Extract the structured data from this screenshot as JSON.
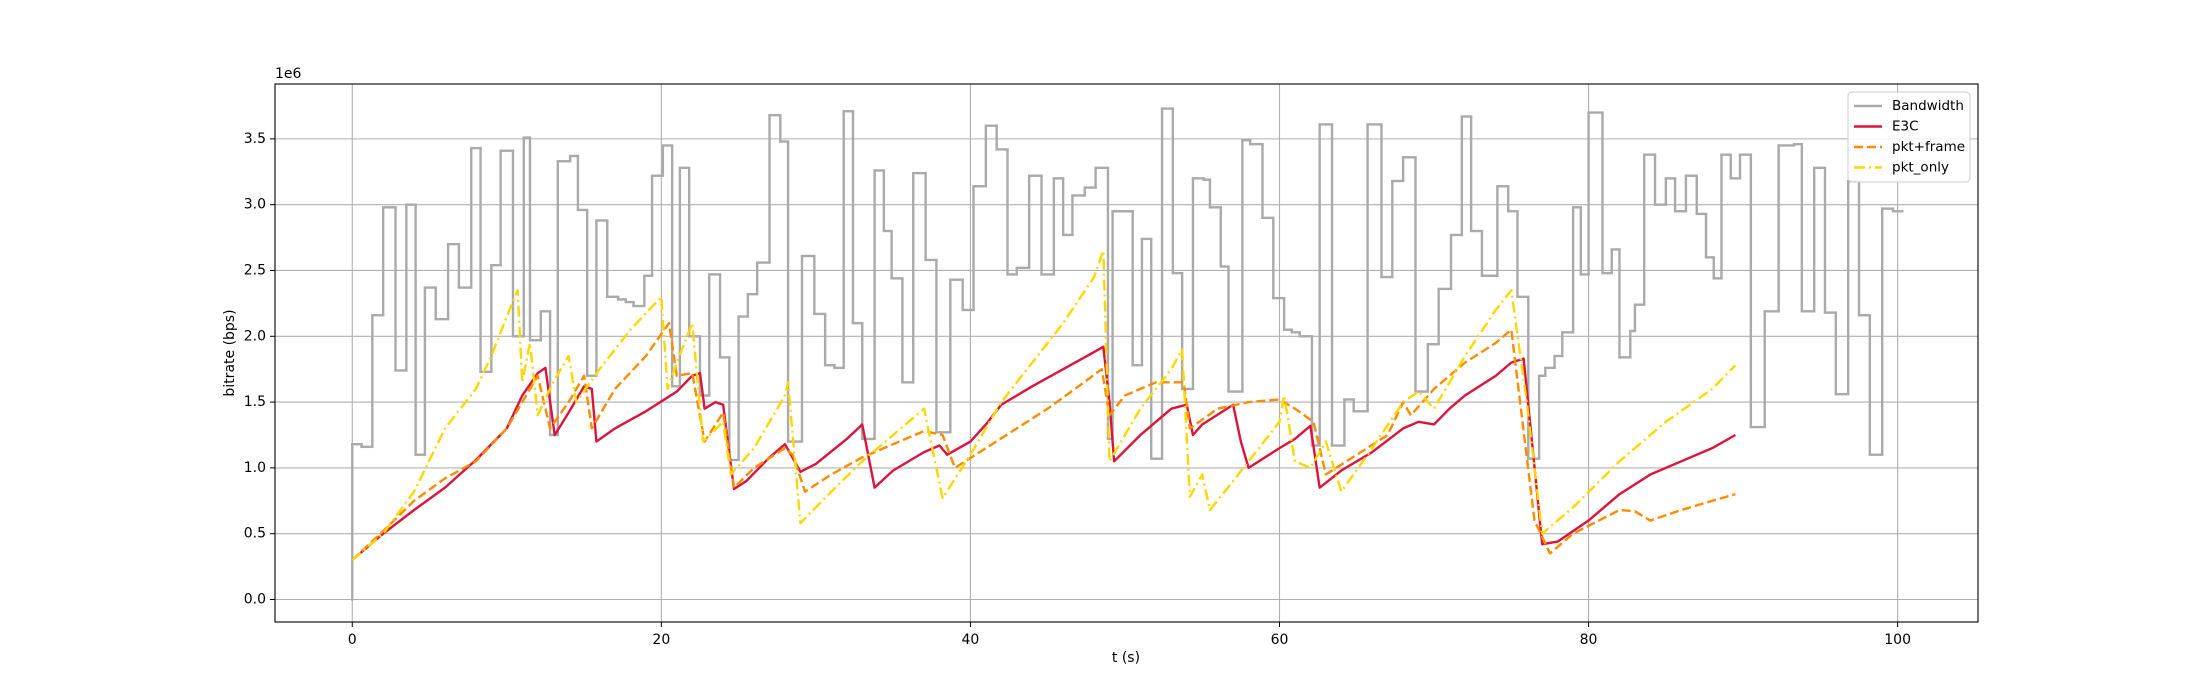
{
  "chart_data": {
    "type": "line",
    "x_label": "t (s)",
    "y_label": "bitrate (bps)",
    "y_offset_label": "1e6",
    "xlim": [
      -5,
      105.2
    ],
    "ylim": [
      -171000,
      3917000
    ],
    "xticks": [
      0,
      20,
      40,
      60,
      80,
      100
    ],
    "yticks": [
      {
        "value": 0,
        "label": "0.0"
      },
      {
        "value": 500000,
        "label": "0.5"
      },
      {
        "value": 1000000,
        "label": "1.0"
      },
      {
        "value": 1500000,
        "label": "1.5"
      },
      {
        "value": 2000000,
        "label": "2.0"
      },
      {
        "value": 2500000,
        "label": "2.5"
      },
      {
        "value": 3000000,
        "label": "3.0"
      },
      {
        "value": 3500000,
        "label": "3.5"
      }
    ],
    "grid": true,
    "legend": "upper right",
    "series": [
      {
        "name": "Bandwidth",
        "color": "#aaaaaa",
        "linestyle": "solid",
        "drawstyle": "steps-post",
        "x": [
          0,
          0,
          0.6,
          1.3,
          2.0,
          2.8,
          3.5,
          4.1,
          4.7,
          5.4,
          6.2,
          6.9,
          7.7,
          8.3,
          9.0,
          9.6,
          10.4,
          11.1,
          11.5,
          12.2,
          12.8,
          13.3,
          14.1,
          14.6,
          15.2,
          15.8,
          16.5,
          17.2,
          17.7,
          18.2,
          18.9,
          19.4,
          20.1,
          20.7,
          21.2,
          21.8,
          22.5,
          23.1,
          23.8,
          24.4,
          25.0,
          25.6,
          26.2,
          27.0,
          27.7,
          28.2,
          29.1,
          29.9,
          30.6,
          31.2,
          31.8,
          32.4,
          33.0,
          33.8,
          34.4,
          34.9,
          35.6,
          36.3,
          37.1,
          37.8,
          38.7,
          39.5,
          40.2,
          41.0,
          41.7,
          42.4,
          43.0,
          43.8,
          44.6,
          45.4,
          46.0,
          46.6,
          47.4,
          48.1,
          48.9,
          49.2,
          50.5,
          51.1,
          51.7,
          52.4,
          53.1,
          53.7,
          54.4,
          55.1,
          55.5,
          56.2,
          56.7,
          57.6,
          58.1,
          58.9,
          59.6,
          60.3,
          60.8,
          61.3,
          62.1,
          62.6,
          63.4,
          64.2,
          64.8,
          65.7,
          66.6,
          67.3,
          68.0,
          68.8,
          69.6,
          70.3,
          71.1,
          71.8,
          72.4,
          73.1,
          74.1,
          74.8,
          75.4,
          76.1,
          76.8,
          77.2,
          77.8,
          78.3,
          79.0,
          79.5,
          80.0,
          80.9,
          81.5,
          82.0,
          82.7,
          83.0,
          83.6,
          84.3,
          85.0,
          85.6,
          86.3,
          87.0,
          87.6,
          88.1,
          88.6,
          89.2,
          89.8,
          90.5,
          91.4,
          92.3,
          93.3,
          93.8,
          94.6,
          95.3,
          96.0,
          96.8,
          97.5,
          98.2,
          99.0,
          99.7,
          100.3
        ],
        "values": [
          0,
          1180000,
          1160000,
          2160000,
          2980000,
          1740000,
          3000000,
          1100000,
          2370000,
          2130000,
          2700000,
          2370000,
          3430000,
          1730000,
          2540000,
          3410000,
          2000000,
          3510000,
          1970000,
          2190000,
          1250000,
          3330000,
          3370000,
          2960000,
          1700000,
          2880000,
          2300000,
          2280000,
          2260000,
          2230000,
          2460000,
          3220000,
          3450000,
          1620000,
          3280000,
          2000000,
          1550000,
          2470000,
          1840000,
          1060000,
          2150000,
          2320000,
          2560000,
          3680000,
          3480000,
          1200000,
          2610000,
          2170000,
          1780000,
          1760000,
          3710000,
          2100000,
          1220000,
          3260000,
          2800000,
          2440000,
          1650000,
          3240000,
          2580000,
          1270000,
          2430000,
          2200000,
          3140000,
          3600000,
          3420000,
          2470000,
          2520000,
          3220000,
          2470000,
          3200000,
          2770000,
          3070000,
          3130000,
          3280000,
          1220000,
          2950000,
          1780000,
          2740000,
          1070000,
          3730000,
          2480000,
          1600000,
          3200000,
          3190000,
          2980000,
          2530000,
          1580000,
          3490000,
          3460000,
          2900000,
          2290000,
          2050000,
          2030000,
          2000000,
          1170000,
          3610000,
          1170000,
          1520000,
          1430000,
          3610000,
          2450000,
          3180000,
          3360000,
          1580000,
          1940000,
          2360000,
          2770000,
          3670000,
          2800000,
          2460000,
          3140000,
          2950000,
          2300000,
          1070000,
          1700000,
          1760000,
          1850000,
          2030000,
          2980000,
          2470000,
          3700000,
          2480000,
          2660000,
          1840000,
          2040000,
          2240000,
          3380000,
          3000000,
          3200000,
          2950000,
          3220000,
          2930000,
          2600000,
          2440000,
          3380000,
          3200000,
          3380000,
          1310000,
          2190000,
          3450000,
          3460000,
          2190000,
          3280000,
          2180000,
          1560000,
          3180000,
          2160000,
          1100000,
          2970000,
          2950000,
          2950000
        ]
      },
      {
        "name": "E3C",
        "color": "#dc143c",
        "linestyle": "solid",
        "x": [
          0,
          2,
          4,
          6,
          8,
          10,
          11,
          12,
          12.5,
          13.1,
          14,
          15,
          15.5,
          15.8,
          17,
          19,
          21,
          22,
          22.5,
          22.8,
          23.5,
          24,
          24.7,
          25.5,
          27,
          28,
          29,
          30,
          32,
          33,
          33.8,
          35,
          37,
          38,
          38.5,
          40,
          41,
          42,
          44,
          46,
          48,
          48.6,
          49,
          49.3,
          51,
          53,
          54,
          54.4,
          55,
          57,
          57.5,
          58,
          60,
          61,
          62,
          62.6,
          64,
          66,
          68,
          69,
          70,
          71,
          72,
          74,
          75,
          75.8,
          77,
          78,
          80,
          82,
          84,
          86,
          88,
          89.5
        ],
        "values": [
          300000,
          500000,
          680000,
          850000,
          1060000,
          1300000,
          1550000,
          1720000,
          1760000,
          1250000,
          1420000,
          1620000,
          1600000,
          1200000,
          1300000,
          1430000,
          1580000,
          1700000,
          1720000,
          1450000,
          1500000,
          1480000,
          840000,
          900000,
          1080000,
          1180000,
          970000,
          1030000,
          1220000,
          1330000,
          850000,
          980000,
          1120000,
          1170000,
          1100000,
          1200000,
          1330000,
          1480000,
          1620000,
          1750000,
          1880000,
          1920000,
          1500000,
          1050000,
          1250000,
          1450000,
          1480000,
          1250000,
          1330000,
          1480000,
          1200000,
          1000000,
          1150000,
          1220000,
          1320000,
          850000,
          980000,
          1120000,
          1300000,
          1350000,
          1330000,
          1450000,
          1550000,
          1700000,
          1800000,
          1830000,
          420000,
          440000,
          600000,
          800000,
          950000,
          1050000,
          1150000,
          1250000
        ]
      },
      {
        "name": "pkt+frame",
        "color": "#ff8c00",
        "linestyle": "dashed",
        "x": [
          0,
          2,
          4,
          6,
          8,
          10,
          11,
          12,
          12.8,
          14,
          15,
          15.5,
          17,
          19,
          20.5,
          21,
          22,
          22.8,
          24,
          24.7,
          26,
          28,
          28.5,
          29.3,
          31,
          33,
          35,
          37,
          38.2,
          39,
          41,
          43,
          45,
          47,
          48.5,
          49,
          50,
          52,
          53.8,
          54.2,
          56,
          58,
          60,
          61,
          62.2,
          63,
          65,
          67,
          68,
          68.5,
          70,
          72,
          74,
          75,
          76.5,
          77.5,
          79,
          81,
          82,
          83,
          84,
          86,
          88,
          89.5
        ],
        "values": [
          300000,
          520000,
          750000,
          920000,
          1050000,
          1300000,
          1500000,
          1700000,
          1300000,
          1500000,
          1700000,
          1300000,
          1600000,
          1850000,
          2100000,
          1700000,
          1720000,
          1200000,
          1420000,
          850000,
          1000000,
          1150000,
          1100000,
          820000,
          950000,
          1080000,
          1180000,
          1280000,
          1250000,
          1000000,
          1150000,
          1300000,
          1450000,
          1620000,
          1750000,
          1400000,
          1550000,
          1650000,
          1650000,
          1300000,
          1450000,
          1500000,
          1520000,
          1450000,
          1350000,
          950000,
          1100000,
          1250000,
          1500000,
          1400000,
          1600000,
          1800000,
          1950000,
          2050000,
          600000,
          350000,
          500000,
          620000,
          680000,
          670000,
          600000,
          680000,
          750000,
          800000
        ]
      },
      {
        "name": "pkt_only",
        "color": "#ffd700",
        "linestyle": "dashdot",
        "x": [
          0,
          2,
          4,
          6,
          8,
          9,
          10,
          10.7,
          11,
          11.5,
          12,
          13,
          14,
          14.5,
          16,
          18,
          20,
          20.4,
          21,
          22,
          22.7,
          24,
          24.5,
          26,
          28,
          28.2,
          29,
          31,
          33,
          35,
          37,
          38.2,
          40,
          42,
          44,
          46,
          48,
          48.6,
          49,
          51,
          53,
          53.7,
          54.2,
          55,
          55.5,
          57,
          59,
          60,
          60.3,
          61,
          62,
          63,
          64,
          66,
          68,
          69,
          70,
          72,
          74,
          75,
          76,
          77,
          79,
          82,
          85,
          88,
          89.5
        ],
        "values": [
          300000,
          500000,
          820000,
          1300000,
          1600000,
          1850000,
          2150000,
          2350000,
          1650000,
          1950000,
          1400000,
          1650000,
          1850000,
          1500000,
          1750000,
          2050000,
          2300000,
          1600000,
          1800000,
          2100000,
          1200000,
          1350000,
          950000,
          1150000,
          1550000,
          1650000,
          580000,
          820000,
          1050000,
          1250000,
          1450000,
          770000,
          1100000,
          1500000,
          1800000,
          2100000,
          2450000,
          2650000,
          1050000,
          1450000,
          1750000,
          1900000,
          780000,
          950000,
          680000,
          900000,
          1200000,
          1350000,
          1550000,
          1050000,
          1000000,
          1200000,
          820000,
          1150000,
          1500000,
          1580000,
          1450000,
          1850000,
          2200000,
          2350000,
          1500000,
          500000,
          700000,
          1050000,
          1350000,
          1600000,
          1780000
        ]
      }
    ]
  }
}
